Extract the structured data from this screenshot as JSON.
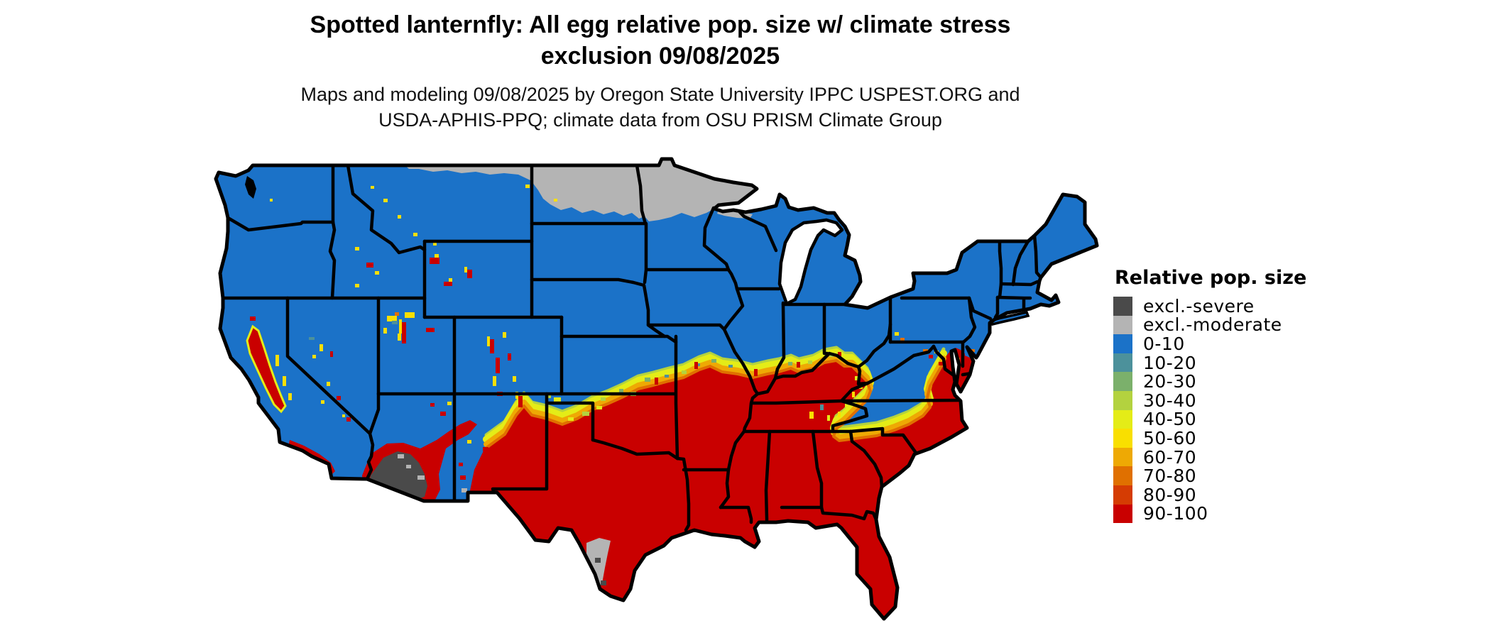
{
  "title": {
    "line1": "Spotted lanternfly: All egg relative pop. size w/ climate stress",
    "line2": "exclusion 09/08/2025"
  },
  "subtitle": {
    "line1": "Maps and modeling 09/08/2025 by Oregon State University IPPC USPEST.ORG and",
    "line2": "USDA-APHIS-PPQ; climate data from OSU PRISM Climate Group"
  },
  "legend": {
    "title": "Relative pop. size",
    "items": [
      {
        "label": "excl.-severe",
        "key": "severe"
      },
      {
        "label": "excl.-moderate",
        "key": "moderate"
      },
      {
        "label": "0-10",
        "key": "c0"
      },
      {
        "label": "10-20",
        "key": "c10"
      },
      {
        "label": "20-30",
        "key": "c20"
      },
      {
        "label": "30-40",
        "key": "c30"
      },
      {
        "label": "40-50",
        "key": "c40"
      },
      {
        "label": "50-60",
        "key": "c50"
      },
      {
        "label": "60-70",
        "key": "c60"
      },
      {
        "label": "70-80",
        "key": "c70"
      },
      {
        "label": "80-90",
        "key": "c80"
      },
      {
        "label": "90-100",
        "key": "c90"
      }
    ]
  },
  "palette": {
    "severe": "#4A4A4A",
    "moderate": "#B4B4B4",
    "c0": "#1B72C8",
    "c10": "#4C919B",
    "c20": "#7BB06B",
    "c30": "#B3D23F",
    "c40": "#E4EC17",
    "c50": "#F9DF00",
    "c60": "#EEA904",
    "c70": "#E07000",
    "c80": "#D53C03",
    "c90": "#C90000",
    "border": "#000000",
    "water": "#FFFFFF"
  },
  "chart_data": {
    "type": "heatmap",
    "title": "Spotted lanternfly: All egg relative pop. size w/ climate stress exclusion 09/08/2025",
    "subtitle": "Maps and modeling 09/08/2025 by Oregon State University IPPC USPEST.ORG and USDA-APHIS-PPQ; climate data from OSU PRISM Climate Group",
    "map_area": "Continental United States with black state borders",
    "legend_title": "Relative pop. size",
    "classes": [
      "excl.-severe",
      "excl.-moderate",
      "0-10",
      "10-20",
      "20-30",
      "30-40",
      "40-50",
      "50-60",
      "60-70",
      "70-80",
      "80-90",
      "90-100"
    ],
    "class_colors": [
      "#4A4A4A",
      "#B4B4B4",
      "#1B72C8",
      "#4C919B",
      "#7BB06B",
      "#B3D23F",
      "#E4EC17",
      "#F9DF00",
      "#EEA904",
      "#E07000",
      "#D53C03",
      "#C90000"
    ],
    "legend_position": "right",
    "regions": [
      {
        "area": "Northern tier: northern Montana, most of North Dakota, northern Minnesota, north WI/MI shoreline",
        "class": "excl.-moderate"
      },
      {
        "area": "Pacific Northwest, Rockies, Great Basin, northern Plains, upper Midwest, Ohio Valley north, Northeast",
        "class": "0-10"
      },
      {
        "area": "Transition band: central Kansas, Missouri, southern Illinois/Indiana, northern Kentucky, across to DC/Maryland",
        "class": "40-70 mix"
      },
      {
        "area": "South and Southeast: Texas, Oklahoma, Gulf states, Tennessee, Carolinas piedmont/coast, Florida, Virginia east",
        "class": "90-100"
      },
      {
        "area": "California Central Valley and southern California",
        "class": "90-100"
      },
      {
        "area": "Southwestern Arizona desert (with fringe)",
        "class": "excl.-severe"
      },
      {
        "area": "South Texas Rio Grande pocket",
        "class": "excl.-moderate"
      },
      {
        "area": "Appalachian highlands wedge (WV, western VA, eastern TN / western NC)",
        "class": "0-10"
      }
    ]
  }
}
